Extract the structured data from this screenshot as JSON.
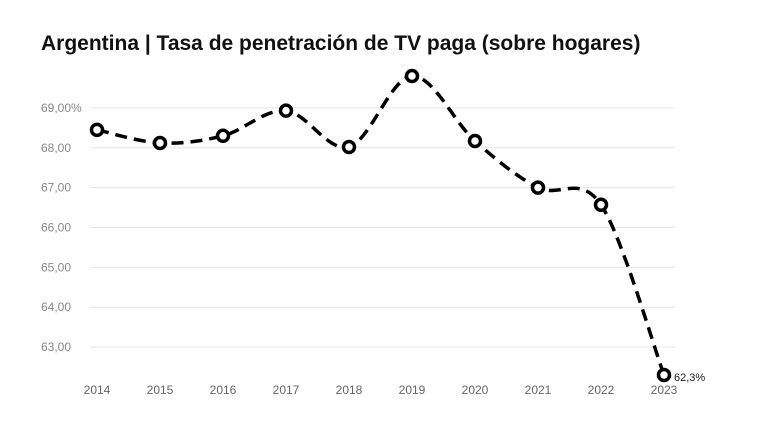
{
  "chart_data": {
    "type": "line",
    "title": "Argentina | Tasa de penetración de TV paga (sobre hogares)",
    "xlabel": "",
    "ylabel": "",
    "x": [
      "2014",
      "2015",
      "2016",
      "2017",
      "2018",
      "2019",
      "2020",
      "2021",
      "2022",
      "2023"
    ],
    "series": [
      {
        "values": [
          68.45,
          68.12,
          68.3,
          68.93,
          68.02,
          69.8,
          68.17,
          67.0,
          66.57,
          62.3
        ],
        "color": "#000000",
        "last_label": "62,3%"
      }
    ],
    "y_ticks": [
      {
        "value": 63,
        "label": "63,00"
      },
      {
        "value": 64,
        "label": "64,00"
      },
      {
        "value": 65,
        "label": "65,00"
      },
      {
        "value": 66,
        "label": "66,00"
      },
      {
        "value": 67,
        "label": "67,00"
      },
      {
        "value": 68,
        "label": "68,00"
      },
      {
        "value": 69,
        "label": "69,00%"
      }
    ],
    "ylim": [
      62.3,
      69.8
    ],
    "grid": true,
    "legend": "none",
    "line_style": "dashed",
    "smooth": true
  }
}
